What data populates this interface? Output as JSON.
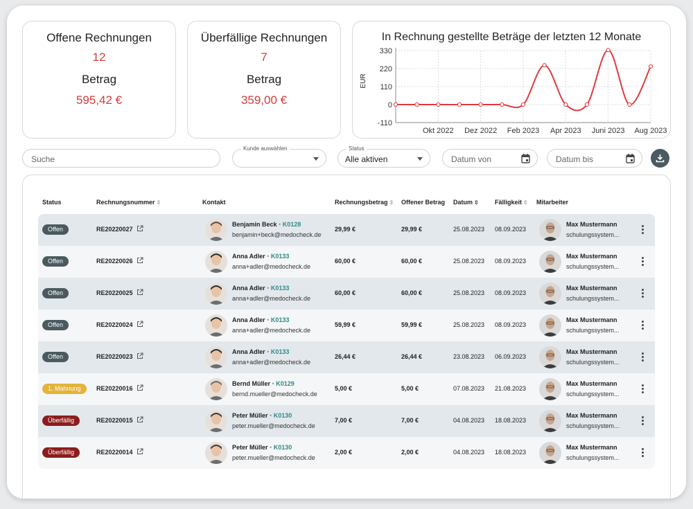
{
  "cards": [
    {
      "title": "Offene Rechnungen",
      "count": "12",
      "label": "Betrag",
      "amount": "595,42 €"
    },
    {
      "title": "Überfällige Rechnungen",
      "count": "7",
      "label": "Betrag",
      "amount": "359,00 €"
    }
  ],
  "chart_data": {
    "type": "line",
    "title": "In Rechnung gestellte Beträge der letzten 12 Monate",
    "ylabel": "EUR",
    "ylim": [
      -110,
      330
    ],
    "yticks": [
      "330",
      "220",
      "110",
      "0",
      "-110"
    ],
    "xticks": [
      "Okt 2022",
      "Dez 2022",
      "Feb 2023",
      "Apr 2023",
      "Juni 2023",
      "Aug 2023"
    ],
    "x": [
      "2022-08",
      "2022-09",
      "2022-10",
      "2022-11",
      "2022-12",
      "2023-01",
      "2023-02",
      "2023-03",
      "2023-04",
      "2023-05",
      "2023-06",
      "2023-07",
      "2023-08"
    ],
    "values": [
      0,
      0,
      0,
      0,
      0,
      0,
      0,
      240,
      0,
      0,
      333,
      0,
      233
    ],
    "color": "#e0393e",
    "grid": true
  },
  "filters": {
    "search_placeholder": "Suche",
    "kunde_label": "Kunde auswählen",
    "kunde_value": "",
    "status_label": "Status",
    "status_value": "Alle aktiven",
    "datum_von": "Datum von",
    "datum_bis": "Datum bis",
    "download_icon": "download-icon"
  },
  "table": {
    "headers": {
      "status": "Status",
      "nummer": "Rechnungsnummer",
      "kontakt": "Kontakt",
      "betrag": "Rechnungsbetrag",
      "offen": "Offener Betrag",
      "datum": "Datum",
      "faellig": "Fälligkeit",
      "mitarbeiter": "Mitarbeiter"
    },
    "rows": [
      {
        "status": "Offen",
        "status_color": "#4b5a61",
        "nummer": "RE20220027",
        "name": "Benjamin Beck",
        "kid": "K0128",
        "email": "benjamin+beck@medocheck.de",
        "betrag": "29,99 €",
        "offen": "29,99 €",
        "datum": "25.08.2023",
        "faellig": "08.09.2023",
        "mitarbeiter": "Max Mustermann",
        "m_email": "schulungssystem..."
      },
      {
        "status": "Offen",
        "status_color": "#4b5a61",
        "nummer": "RE20220026",
        "name": "Anna Adler",
        "kid": "K0133",
        "email": "anna+adler@medocheck.de",
        "betrag": "60,00 €",
        "offen": "60,00 €",
        "datum": "25.08.2023",
        "faellig": "08.09.2023",
        "mitarbeiter": "Max Mustermann",
        "m_email": "schulungssystem..."
      },
      {
        "status": "Offen",
        "status_color": "#4b5a61",
        "nummer": "RE20220025",
        "name": "Anna Adler",
        "kid": "K0133",
        "email": "anna+adler@medocheck.de",
        "betrag": "60,00 €",
        "offen": "60,00 €",
        "datum": "25.08.2023",
        "faellig": "08.09.2023",
        "mitarbeiter": "Max Mustermann",
        "m_email": "schulungssystem..."
      },
      {
        "status": "Offen",
        "status_color": "#4b5a61",
        "nummer": "RE20220024",
        "name": "Anna Adler",
        "kid": "K0133",
        "email": "anna+adler@medocheck.de",
        "betrag": "59,99 €",
        "offen": "59,99 €",
        "datum": "25.08.2023",
        "faellig": "08.09.2023",
        "mitarbeiter": "Max Mustermann",
        "m_email": "schulungssystem..."
      },
      {
        "status": "Offen",
        "status_color": "#4b5a61",
        "nummer": "RE20220023",
        "name": "Anna Adler",
        "kid": "K0133",
        "email": "anna+adler@medocheck.de",
        "betrag": "26,44 €",
        "offen": "26,44 €",
        "datum": "23.08.2023",
        "faellig": "06.09.2023",
        "mitarbeiter": "Max Mustermann",
        "m_email": "schulungssystem..."
      },
      {
        "status": "1. Mahnung",
        "status_color": "#e5b33a",
        "nummer": "RE20220016",
        "name": "Bernd Müller",
        "kid": "K0129",
        "email": "bernd.mueller@medocheck.de",
        "betrag": "5,00 €",
        "offen": "5,00 €",
        "datum": "07.08.2023",
        "faellig": "21.08.2023",
        "mitarbeiter": "Max Mustermann",
        "m_email": "schulungssystem..."
      },
      {
        "status": "Überfällig",
        "status_color": "#8c1c1c",
        "nummer": "RE20220015",
        "name": "Peter Müller",
        "kid": "K0130",
        "email": "peter.mueller@medocheck.de",
        "betrag": "7,00 €",
        "offen": "7,00 €",
        "datum": "04.08.2023",
        "faellig": "18.08.2023",
        "mitarbeiter": "Max Mustermann",
        "m_email": "schulungssystem..."
      },
      {
        "status": "Überfällig",
        "status_color": "#8c1c1c",
        "nummer": "RE20220014",
        "name": "Peter Müller",
        "kid": "K0130",
        "email": "peter.mueller@medocheck.de",
        "betrag": "2,00 €",
        "offen": "2,00 €",
        "datum": "04.08.2023",
        "faellig": "18.08.2023",
        "mitarbeiter": "Max Mustermann",
        "m_email": "schulungssystem..."
      }
    ]
  }
}
